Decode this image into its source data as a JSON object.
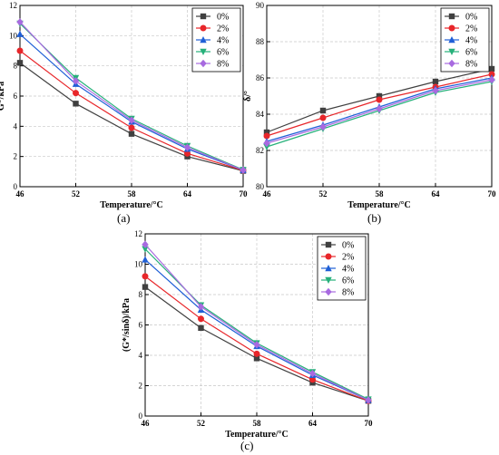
{
  "panel_labels": [
    "(a)",
    "(b)",
    "(c)"
  ],
  "legend": {
    "entries": [
      "0%",
      "2%",
      "4%",
      "6%",
      "8%"
    ],
    "colors": [
      "#404040",
      "#e8262a",
      "#1f5fd6",
      "#26b07a",
      "#a86ae0"
    ],
    "markers": [
      "square",
      "circle",
      "triangle-up",
      "triangle-down",
      "diamond"
    ]
  },
  "chart_data": [
    {
      "type": "line",
      "xlabel": "Temperature/°C",
      "ylabel": "G*/kPa",
      "x": [
        46,
        52,
        58,
        64,
        70
      ],
      "xticks": [
        46,
        52,
        58,
        64,
        70
      ],
      "ylim": [
        0,
        12
      ],
      "yticks": [
        0,
        2,
        4,
        6,
        8,
        10,
        12
      ],
      "grid": true,
      "legend_position": "top-right",
      "series": [
        {
          "name": "0%",
          "values": [
            8.2,
            5.5,
            3.5,
            2.0,
            1.05
          ]
        },
        {
          "name": "2%",
          "values": [
            9.0,
            6.2,
            3.9,
            2.2,
            1.08
          ]
        },
        {
          "name": "4%",
          "values": [
            10.1,
            6.8,
            4.3,
            2.5,
            1.1
          ]
        },
        {
          "name": "6%",
          "values": [
            10.8,
            7.2,
            4.5,
            2.7,
            1.12
          ]
        },
        {
          "name": "8%",
          "values": [
            10.9,
            7.0,
            4.4,
            2.6,
            1.1
          ]
        }
      ]
    },
    {
      "type": "line",
      "xlabel": "Temperature/°C",
      "ylabel": "δ/°",
      "x": [
        46,
        52,
        58,
        64,
        70
      ],
      "xticks": [
        46,
        52,
        58,
        64,
        70
      ],
      "ylim": [
        80,
        90
      ],
      "yticks": [
        80,
        82,
        84,
        86,
        88,
        90
      ],
      "grid": true,
      "legend_position": "top-right",
      "series": [
        {
          "name": "0%",
          "values": [
            83.0,
            84.2,
            85.0,
            85.8,
            86.5
          ]
        },
        {
          "name": "2%",
          "values": [
            82.8,
            83.8,
            84.8,
            85.5,
            86.2
          ]
        },
        {
          "name": "4%",
          "values": [
            82.5,
            83.4,
            84.4,
            85.4,
            86.0
          ]
        },
        {
          "name": "6%",
          "values": [
            82.2,
            83.2,
            84.2,
            85.2,
            85.8
          ]
        },
        {
          "name": "8%",
          "values": [
            82.4,
            83.3,
            84.3,
            85.3,
            85.9
          ]
        }
      ]
    },
    {
      "type": "line",
      "xlabel": "Temperature/°C",
      "ylabel": "(G*/sinδ)/kPa",
      "x": [
        46,
        52,
        58,
        64,
        70
      ],
      "xticks": [
        46,
        52,
        58,
        64,
        70
      ],
      "ylim": [
        0,
        12
      ],
      "yticks": [
        0,
        2,
        4,
        6,
        8,
        10,
        12
      ],
      "grid": true,
      "legend_position": "top-right",
      "series": [
        {
          "name": "0%",
          "values": [
            8.5,
            5.8,
            3.8,
            2.2,
            1.0
          ]
        },
        {
          "name": "2%",
          "values": [
            9.2,
            6.4,
            4.1,
            2.4,
            1.0
          ]
        },
        {
          "name": "4%",
          "values": [
            10.3,
            7.0,
            4.6,
            2.7,
            1.05
          ]
        },
        {
          "name": "6%",
          "values": [
            11.0,
            7.3,
            4.8,
            2.9,
            1.1
          ]
        },
        {
          "name": "8%",
          "values": [
            11.3,
            7.2,
            4.7,
            2.8,
            1.05
          ]
        }
      ]
    }
  ]
}
